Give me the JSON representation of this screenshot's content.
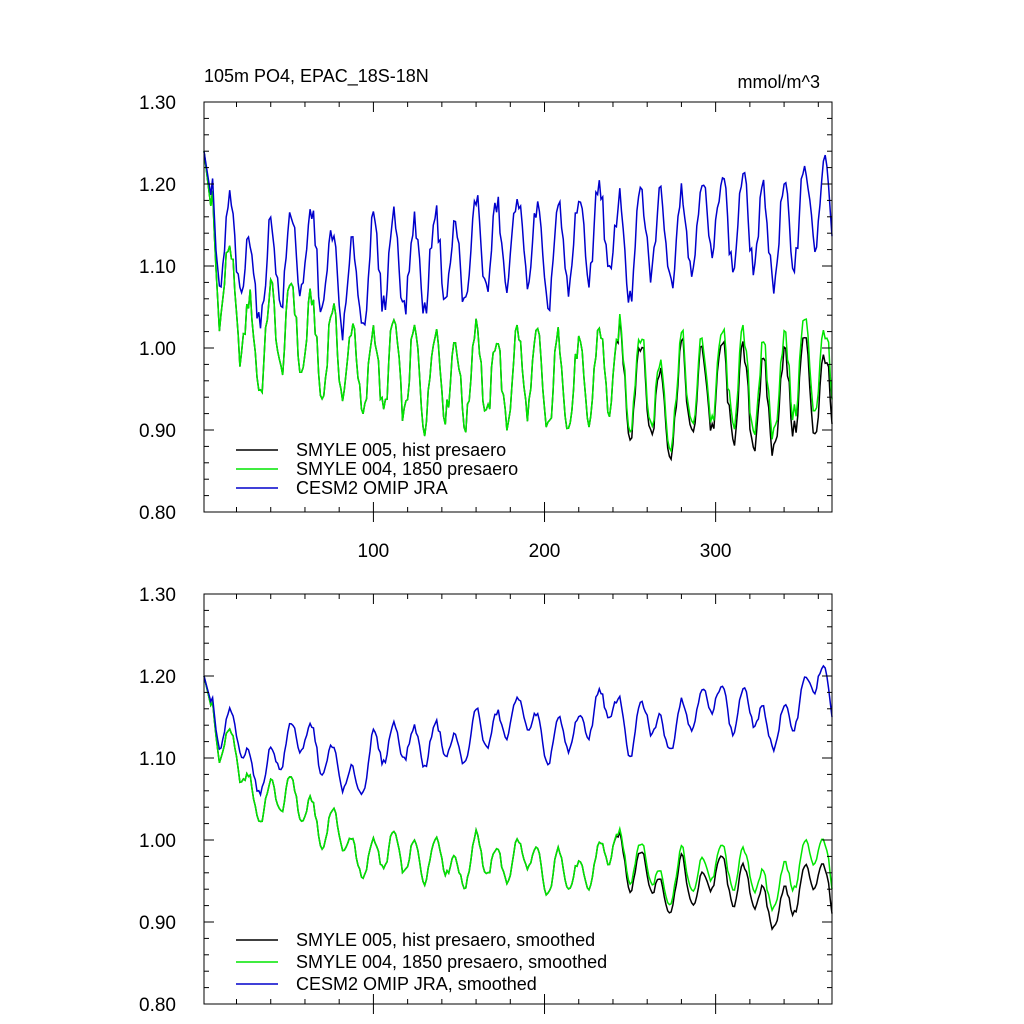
{
  "chart_data": [
    {
      "type": "line",
      "title": "105m PO4, EPAC_18S-18N",
      "units": "mmol/m^3",
      "xlabel": "",
      "ylabel": "",
      "xlim": [
        1,
        368
      ],
      "ylim": [
        0.8,
        1.3
      ],
      "x_ticks": [
        100,
        200,
        300
      ],
      "x_tick_labels": [
        "100",
        "200",
        "300"
      ],
      "y_ticks": [
        0.8,
        0.9,
        1.0,
        1.1,
        1.2,
        1.3
      ],
      "y_tick_labels": [
        "0.80",
        "0.90",
        "1.00",
        "1.10",
        "1.20",
        "1.30"
      ],
      "legend_position": "bottom-left",
      "grid": false,
      "series": [
        {
          "name": "SMYLE 005, hist presaero",
          "color": "#000000",
          "x": [
            1,
            10,
            20,
            30,
            40,
            50,
            60,
            70,
            80,
            90,
            100,
            110,
            120,
            130,
            140,
            150,
            160,
            170,
            180,
            190,
            200,
            210,
            220,
            230,
            240,
            250,
            260,
            270,
            280,
            290,
            300,
            310,
            320,
            330,
            340,
            350,
            360,
            368
          ],
          "values": [
            1.24,
            1.09,
            1.06,
            0.99,
            1.02,
            1.03,
            1.02,
            0.99,
            1.0,
            0.97,
            0.97,
            0.98,
            0.97,
            0.96,
            0.98,
            0.95,
            0.98,
            0.96,
            0.96,
            0.98,
            0.95,
            0.96,
            0.95,
            0.97,
            0.98,
            0.95,
            0.96,
            0.91,
            0.95,
            0.94,
            0.96,
            0.94,
            0.94,
            0.92,
            0.94,
            0.96,
            0.95,
            0.93
          ]
        },
        {
          "name": "SMYLE 004, 1850 presaero",
          "color": "#00e600",
          "x": [
            1,
            10,
            20,
            30,
            40,
            50,
            60,
            70,
            80,
            90,
            100,
            110,
            120,
            130,
            140,
            150,
            160,
            170,
            180,
            190,
            200,
            210,
            220,
            230,
            240,
            250,
            260,
            270,
            280,
            290,
            300,
            310,
            320,
            330,
            340,
            350,
            360,
            368
          ],
          "values": [
            1.24,
            1.09,
            1.06,
            0.99,
            1.02,
            1.03,
            1.02,
            0.99,
            1.0,
            0.97,
            0.97,
            0.98,
            0.97,
            0.96,
            0.98,
            0.95,
            0.98,
            0.96,
            0.96,
            0.98,
            0.95,
            0.96,
            0.95,
            0.97,
            0.98,
            0.96,
            0.97,
            0.92,
            0.96,
            0.95,
            0.97,
            0.96,
            0.96,
            0.94,
            0.96,
            0.98,
            0.98,
            0.96
          ]
        },
        {
          "name": "CESM2 OMIP JRA",
          "color": "#0000cc",
          "x": [
            1,
            10,
            20,
            30,
            40,
            50,
            60,
            70,
            80,
            90,
            100,
            110,
            120,
            130,
            140,
            150,
            160,
            170,
            180,
            190,
            200,
            210,
            220,
            230,
            240,
            250,
            260,
            270,
            280,
            290,
            300,
            310,
            320,
            330,
            340,
            350,
            360,
            368
          ],
          "values": [
            1.24,
            1.12,
            1.13,
            1.07,
            1.1,
            1.11,
            1.12,
            1.1,
            1.08,
            1.07,
            1.1,
            1.11,
            1.1,
            1.1,
            1.12,
            1.09,
            1.13,
            1.12,
            1.13,
            1.14,
            1.1,
            1.12,
            1.13,
            1.15,
            1.14,
            1.11,
            1.15,
            1.13,
            1.14,
            1.15,
            1.17,
            1.15,
            1.16,
            1.13,
            1.14,
            1.17,
            1.18,
            1.16
          ]
        }
      ]
    },
    {
      "type": "line",
      "title": "",
      "xlabel": "",
      "ylabel": "",
      "xlim": [
        1,
        368
      ],
      "ylim": [
        0.8,
        1.3
      ],
      "x_ticks": [
        100,
        200,
        300
      ],
      "x_tick_labels": [],
      "y_ticks": [
        0.8,
        0.9,
        1.0,
        1.1,
        1.2,
        1.3
      ],
      "y_tick_labels": [
        "0.80",
        "0.90",
        "1.00",
        "1.10",
        "1.20",
        "1.30"
      ],
      "legend_position": "bottom-left",
      "grid": false,
      "series": [
        {
          "name": "SMYLE 005, hist presaero, smoothed",
          "color": "#000000",
          "x": [
            1,
            10,
            20,
            30,
            40,
            50,
            60,
            70,
            80,
            90,
            100,
            110,
            120,
            130,
            140,
            150,
            160,
            170,
            180,
            190,
            200,
            210,
            220,
            230,
            240,
            250,
            260,
            270,
            280,
            290,
            300,
            310,
            320,
            330,
            340,
            350,
            360,
            368
          ],
          "values": [
            1.2,
            1.12,
            1.11,
            1.04,
            1.05,
            1.06,
            1.04,
            1.01,
            1.02,
            0.97,
            0.98,
            0.99,
            0.98,
            0.97,
            0.99,
            0.95,
            0.99,
            0.97,
            0.97,
            0.99,
            0.95,
            0.97,
            0.95,
            0.97,
            1.0,
            0.96,
            0.97,
            0.92,
            0.96,
            0.93,
            0.97,
            0.94,
            0.95,
            0.91,
            0.92,
            0.94,
            0.97,
            0.92
          ]
        },
        {
          "name": "SMYLE 004, 1850 presaero, smoothed",
          "color": "#00e600",
          "x": [
            1,
            10,
            20,
            30,
            40,
            50,
            60,
            70,
            80,
            90,
            100,
            110,
            120,
            130,
            140,
            150,
            160,
            170,
            180,
            190,
            200,
            210,
            220,
            230,
            240,
            250,
            260,
            270,
            280,
            290,
            300,
            310,
            320,
            330,
            340,
            350,
            360,
            368
          ],
          "values": [
            1.2,
            1.12,
            1.11,
            1.04,
            1.05,
            1.06,
            1.04,
            1.01,
            1.02,
            0.97,
            0.98,
            0.99,
            0.98,
            0.97,
            0.99,
            0.95,
            0.99,
            0.97,
            0.97,
            0.99,
            0.95,
            0.97,
            0.95,
            0.97,
            1.0,
            0.97,
            0.98,
            0.93,
            0.97,
            0.95,
            0.98,
            0.96,
            0.97,
            0.93,
            0.95,
            0.97,
            1.0,
            0.95
          ]
        },
        {
          "name": "CESM2 OMIP JRA, smoothed",
          "color": "#0000cc",
          "x": [
            1,
            10,
            20,
            30,
            40,
            50,
            60,
            70,
            80,
            90,
            100,
            110,
            120,
            130,
            140,
            150,
            160,
            170,
            180,
            190,
            200,
            210,
            220,
            230,
            240,
            250,
            260,
            270,
            280,
            290,
            300,
            310,
            320,
            330,
            340,
            350,
            360,
            368
          ],
          "values": [
            1.2,
            1.13,
            1.14,
            1.07,
            1.09,
            1.12,
            1.13,
            1.1,
            1.09,
            1.06,
            1.11,
            1.12,
            1.12,
            1.11,
            1.13,
            1.1,
            1.14,
            1.13,
            1.15,
            1.16,
            1.11,
            1.13,
            1.13,
            1.16,
            1.17,
            1.12,
            1.16,
            1.12,
            1.15,
            1.16,
            1.18,
            1.15,
            1.17,
            1.13,
            1.14,
            1.17,
            1.21,
            1.16
          ]
        }
      ]
    }
  ]
}
